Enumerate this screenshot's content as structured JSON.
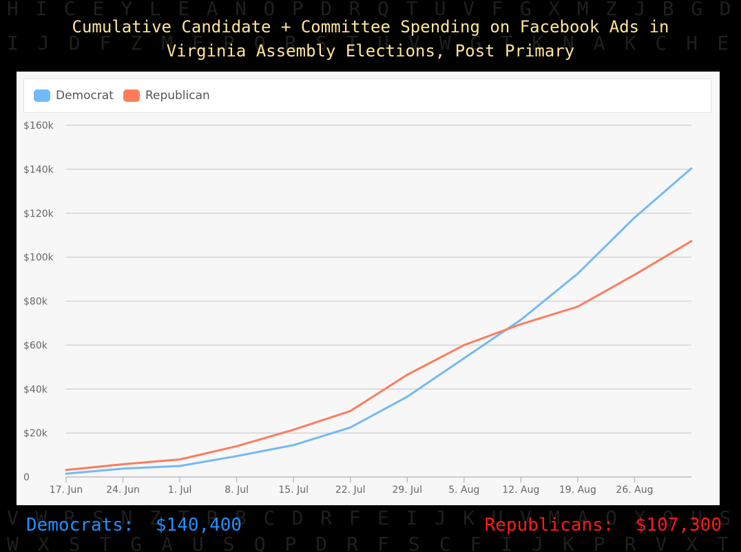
{
  "title_line1": "Cumulative Candidate + Committee Spending on Facebook Ads in",
  "title_line2": "Virginia Assembly Elections, Post Primary",
  "background_letters": [
    "HICEYLEANOPDRQTUVFGXMZJBGD",
    "IJDFZMEPQRSTUVWGTKNAKCHE",
    "VWRSNZTRBCDRFEIJKUVMAOXQUS",
    "WXSTGAUSQPDRFSCFIJKPRVXT"
  ],
  "colors": {
    "democrat": "#73b9f6",
    "republican": "#ff7b5c",
    "title": "#ffe59a",
    "footer_democrat": "#1e90ff",
    "footer_republican": "#ff1a1a"
  },
  "footer": {
    "democrats_label": "Democrats:",
    "democrats_value": "$140,400",
    "republicans_label": "Republicans:",
    "republicans_value": "$107,300"
  },
  "chart_data": {
    "type": "line",
    "title": "Cumulative Candidate + Committee Spending on Facebook Ads in Virginia Assembly Elections, Post Primary",
    "xlabel": "",
    "ylabel": "",
    "x": [
      "2017-06-17",
      "2017-06-24",
      "2017-07-01",
      "2017-07-08",
      "2017-07-15",
      "2017-07-22",
      "2017-07-29",
      "2017-08-05",
      "2017-08-12",
      "2017-08-19",
      "2017-08-26",
      "2017-09-02"
    ],
    "x_tick_labels": [
      "17. Jun",
      "24. Jun",
      "1. Jul",
      "8. Jul",
      "15. Jul",
      "22. Jul",
      "29. Jul",
      "5. Aug",
      "12. Aug",
      "19. Aug",
      "26. Aug"
    ],
    "y_tick_labels": [
      "0",
      "$20k",
      "$40k",
      "$60k",
      "$80k",
      "$100k",
      "$120k",
      "$140k",
      "$160k"
    ],
    "ylim": [
      0,
      160000
    ],
    "grid": true,
    "legend_position": "top-left",
    "series": [
      {
        "name": "Democrat",
        "color": "#73b9f6",
        "values": [
          1500,
          3800,
          5000,
          9500,
          14500,
          22500,
          36500,
          54000,
          71500,
          92500,
          118000,
          140400
        ]
      },
      {
        "name": "Republican",
        "color": "#ff7b5c",
        "values": [
          3200,
          5800,
          8000,
          14000,
          21500,
          30000,
          46500,
          60000,
          69500,
          77500,
          92000,
          107300
        ]
      }
    ]
  }
}
